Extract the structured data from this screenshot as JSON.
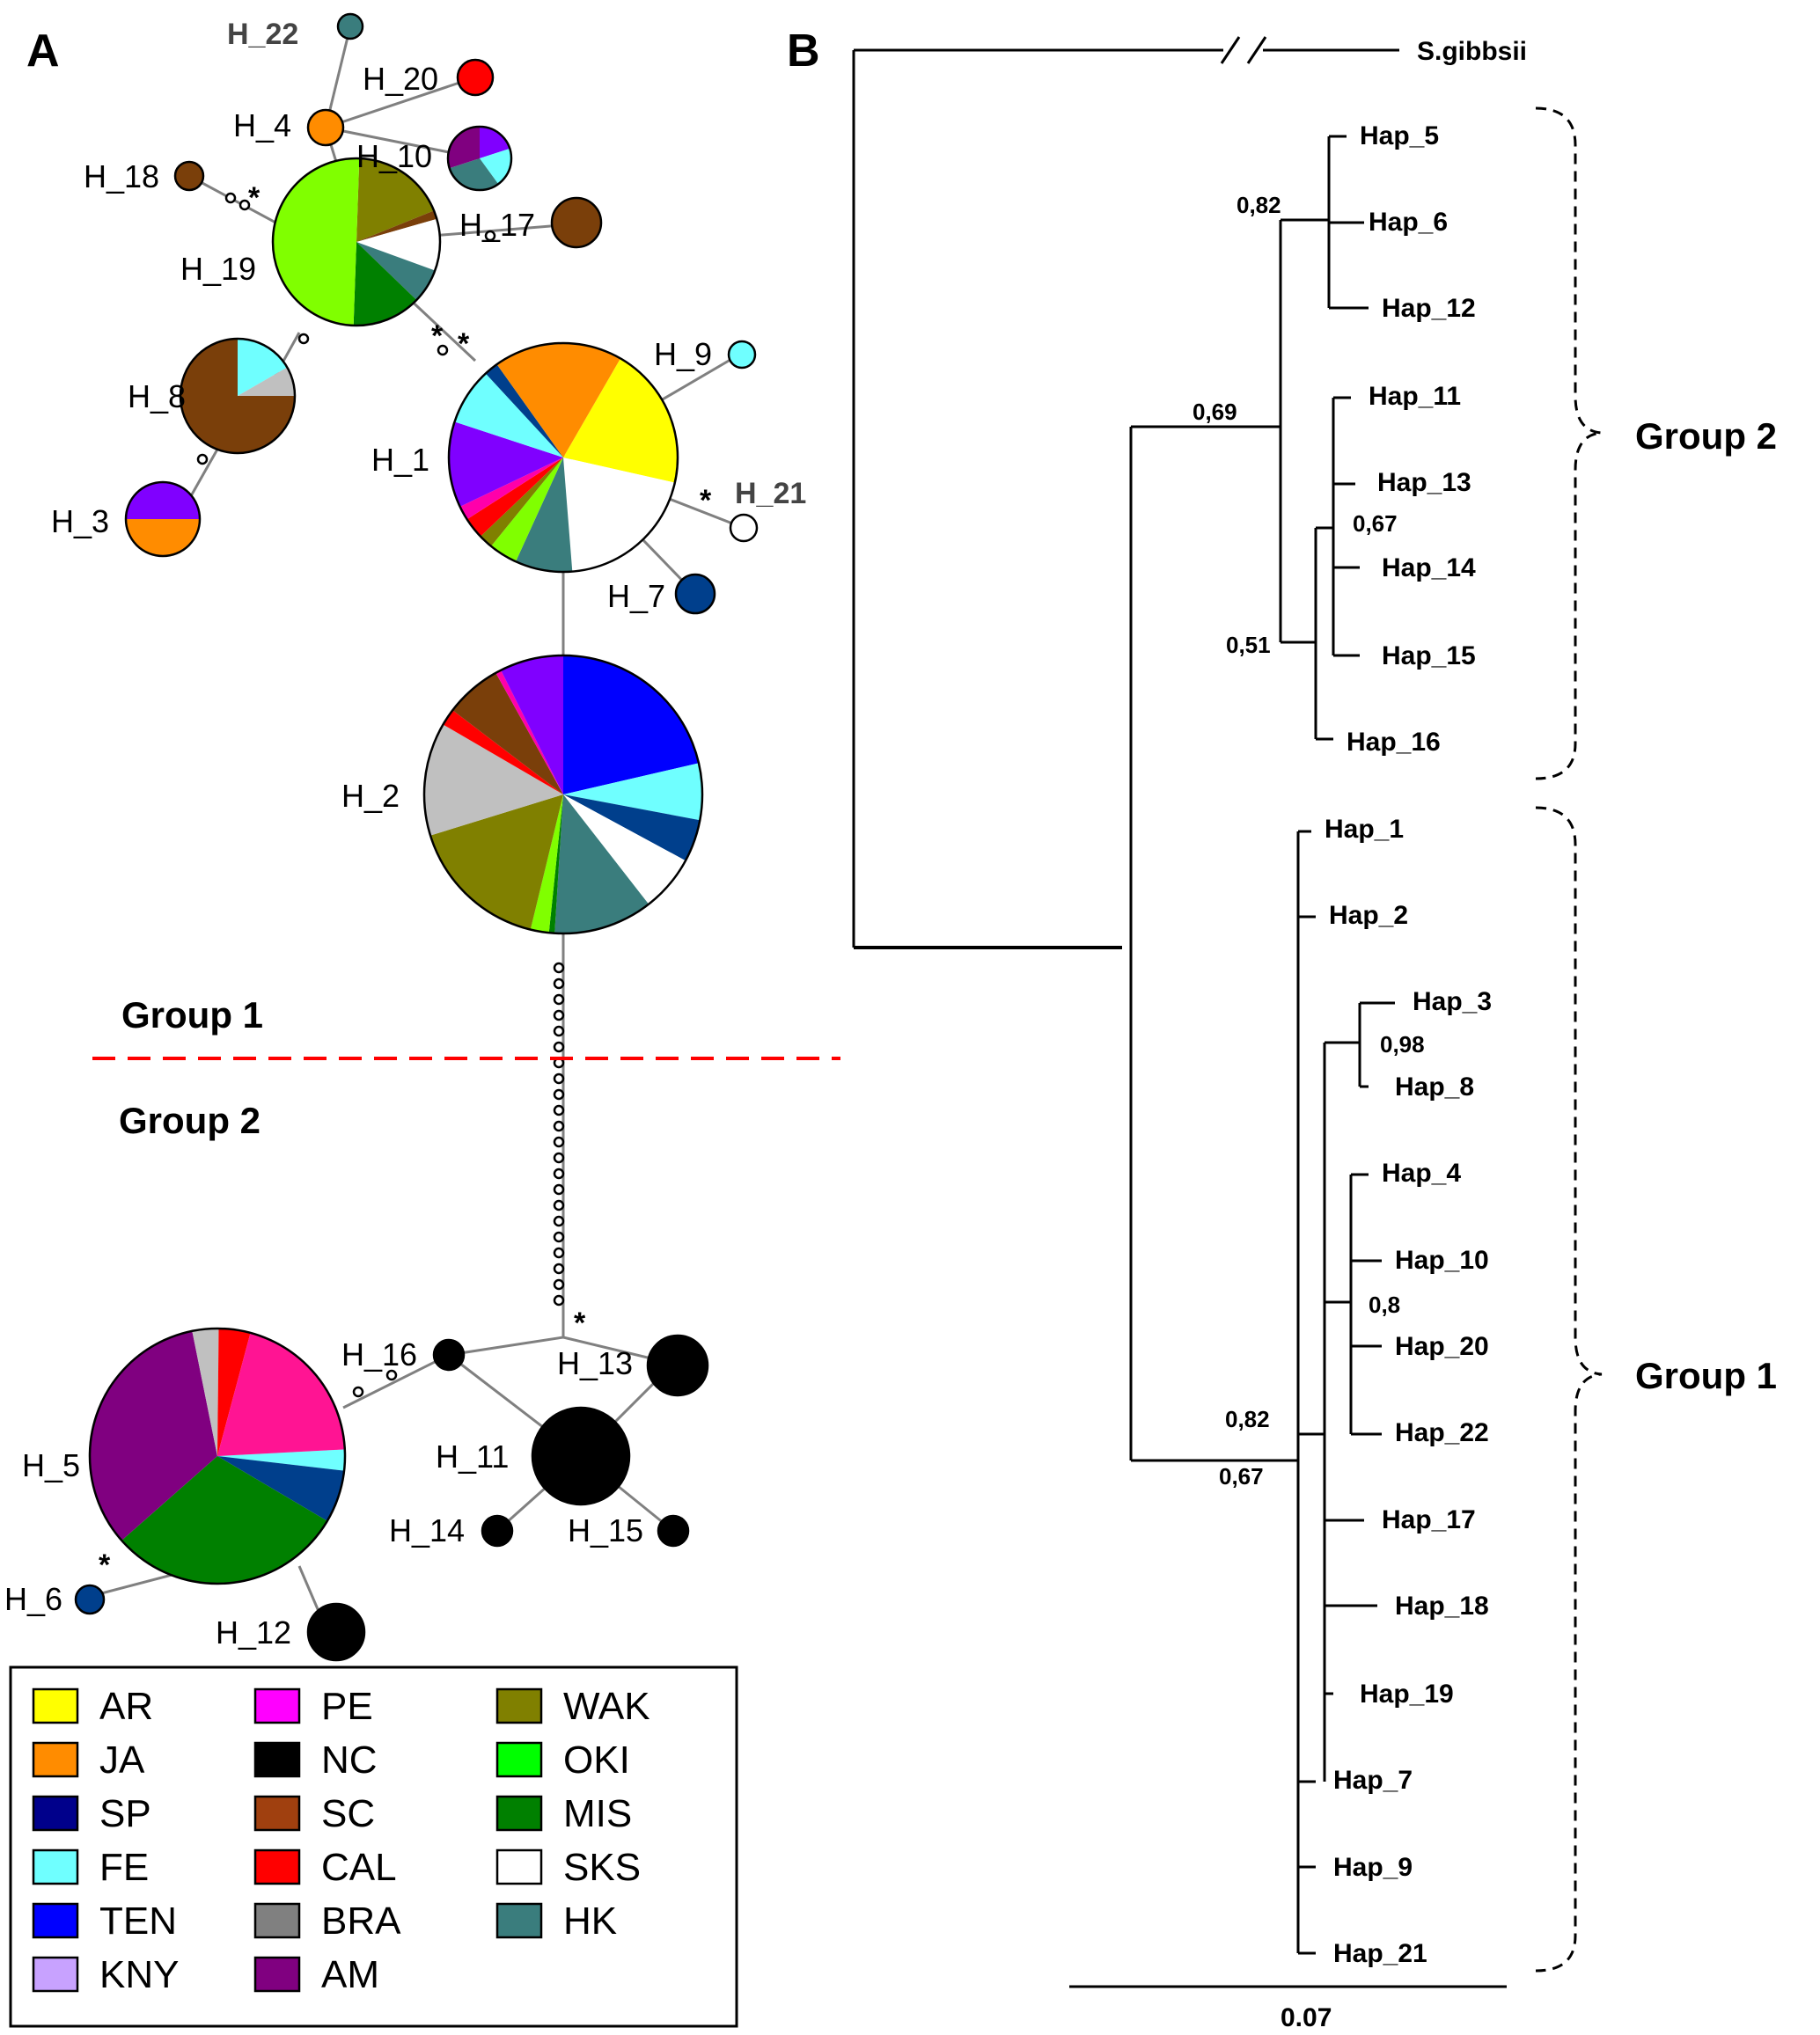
{
  "panels": {
    "a": "A",
    "b": "B"
  },
  "network": {
    "group1_label": "Group 1",
    "group2_label": "Group 2",
    "haplotypes": [
      {
        "id": "H_22",
        "label": "H_22",
        "slices": [
          {
            "c": "#3a7d7d",
            "v": 1
          }
        ]
      },
      {
        "id": "H_20",
        "label": "H_20",
        "slices": [
          {
            "c": "#ff0000",
            "v": 1
          }
        ]
      },
      {
        "id": "H_4",
        "label": "H_4",
        "slices": [
          {
            "c": "#ff8c00",
            "v": 1
          }
        ]
      },
      {
        "id": "H_10",
        "label": "H_10",
        "slices": [
          {
            "c": "#8000ff",
            "v": 1
          },
          {
            "c": "#6fffff",
            "v": 1
          },
          {
            "c": "#3a7d7d",
            "v": 1.5
          },
          {
            "c": "#800080",
            "v": 1.5
          }
        ]
      },
      {
        "id": "H_18",
        "label": "H_18",
        "slices": [
          {
            "c": "#7a3f0a",
            "v": 1
          }
        ]
      },
      {
        "id": "H_17",
        "label": "H_17",
        "slices": [
          {
            "c": "#7a3f0a",
            "v": 1
          }
        ]
      },
      {
        "id": "H_19",
        "label": "H_19",
        "slices": [
          {
            "c": "#808000",
            "v": 2.2
          },
          {
            "c": "#7a3f0a",
            "v": 0.2
          },
          {
            "c": "#ffffff",
            "v": 1.2
          },
          {
            "c": "#3a7d7d",
            "v": 0.8
          },
          {
            "c": "#008000",
            "v": 1.6
          },
          {
            "c": "#80ff00",
            "v": 6
          }
        ]
      },
      {
        "id": "H_8",
        "label": "H_8",
        "slices": [
          {
            "c": "#6fffff",
            "v": 2
          },
          {
            "c": "#c0c0c0",
            "v": 1
          },
          {
            "c": "#7a3f0a",
            "v": 9
          }
        ]
      },
      {
        "id": "H_3",
        "label": "H_3",
        "slices": [
          {
            "c": "#ff8c00",
            "v": 1
          },
          {
            "c": "#8000ff",
            "v": 1
          }
        ]
      },
      {
        "id": "H_9",
        "label": "H_9",
        "slices": [
          {
            "c": "#6fffff",
            "v": 1
          }
        ]
      },
      {
        "id": "H_1",
        "label": "H_1",
        "slices": [
          {
            "c": "#ffff00",
            "v": 10
          },
          {
            "c": "#ffffff",
            "v": 10
          },
          {
            "c": "#3a7d7d",
            "v": 4
          },
          {
            "c": "#80ff00",
            "v": 2
          },
          {
            "c": "#808000",
            "v": 1
          },
          {
            "c": "#ff0000",
            "v": 1.5
          },
          {
            "c": "#ff00aa",
            "v": 1
          },
          {
            "c": "#8000ff",
            "v": 6
          },
          {
            "c": "#6fffff",
            "v": 4
          },
          {
            "c": "#003f8c",
            "v": 1
          },
          {
            "c": "#ff8c00",
            "v": 9
          }
        ]
      },
      {
        "id": "H_21",
        "label": "H_21",
        "slices": [
          {
            "c": "#ffffff",
            "v": 1
          }
        ]
      },
      {
        "id": "H_7",
        "label": "H_7",
        "slices": [
          {
            "c": "#003f8c",
            "v": 1
          }
        ]
      },
      {
        "id": "H_2",
        "label": "H_2",
        "slices": [
          {
            "c": "#0000ff",
            "v": 13
          },
          {
            "c": "#6fffff",
            "v": 4
          },
          {
            "c": "#003f8c",
            "v": 3
          },
          {
            "c": "#ffffff",
            "v": 4
          },
          {
            "c": "#3a7d7d",
            "v": 7
          },
          {
            "c": "#008000",
            "v": 0.4
          },
          {
            "c": "#80ff00",
            "v": 1.3
          },
          {
            "c": "#808000",
            "v": 10
          },
          {
            "c": "#c0c0c0",
            "v": 8
          },
          {
            "c": "#ff0000",
            "v": 1.2
          },
          {
            "c": "#7a3f0a",
            "v": 4
          },
          {
            "c": "#ff00aa",
            "v": 0.4
          },
          {
            "c": "#8000ff",
            "v": 4.5
          }
        ]
      },
      {
        "id": "H_16",
        "label": "H_16",
        "slices": [
          {
            "c": "#000000",
            "v": 1
          }
        ]
      },
      {
        "id": "H_13",
        "label": "H_13",
        "slices": [
          {
            "c": "#000000",
            "v": 1
          }
        ]
      },
      {
        "id": "H_11",
        "label": "H_11",
        "slices": [
          {
            "c": "#000000",
            "v": 1
          }
        ]
      },
      {
        "id": "H_14",
        "label": "H_14",
        "slices": [
          {
            "c": "#000000",
            "v": 1
          }
        ]
      },
      {
        "id": "H_15",
        "label": "H_15",
        "slices": [
          {
            "c": "#000000",
            "v": 1
          }
        ]
      },
      {
        "id": "H_5",
        "label": "H_5",
        "slices": [
          {
            "c": "#6fffff",
            "v": 0.8
          },
          {
            "c": "#003f8c",
            "v": 2
          },
          {
            "c": "#008000",
            "v": 9
          },
          {
            "c": "#800080",
            "v": 10
          },
          {
            "c": "#c0c0c0",
            "v": 1
          },
          {
            "c": "#ff0000",
            "v": 1.2
          },
          {
            "c": "#ff1493",
            "v": 6
          }
        ]
      },
      {
        "id": "H_6",
        "label": "H_6",
        "slices": [
          {
            "c": "#003f8c",
            "v": 1
          }
        ]
      },
      {
        "id": "H_12",
        "label": "H_12",
        "slices": [
          {
            "c": "#000000",
            "v": 1
          }
        ]
      }
    ],
    "mutation_mark": "*"
  },
  "legend": [
    {
      "label": "AR",
      "color": "#ffff00"
    },
    {
      "label": "JA",
      "color": "#ff8c00"
    },
    {
      "label": "SP",
      "color": "#00008b"
    },
    {
      "label": "FE",
      "color": "#6fffff"
    },
    {
      "label": "TEN",
      "color": "#0000ff"
    },
    {
      "label": "KNY",
      "color": "#c8a2ff"
    },
    {
      "label": "PE",
      "color": "#ff00ff"
    },
    {
      "label": "NC",
      "color": "#000000"
    },
    {
      "label": "SC",
      "color": "#a0400f"
    },
    {
      "label": "CAL",
      "color": "#ff0000"
    },
    {
      "label": "BRA",
      "color": "#808080"
    },
    {
      "label": "AM",
      "color": "#800080"
    },
    {
      "label": "WAK",
      "color": "#808000"
    },
    {
      "label": "OKI",
      "color": "#00ff00"
    },
    {
      "label": "MIS",
      "color": "#008000"
    },
    {
      "label": "SKS",
      "color": "#ffffff"
    },
    {
      "label": "HK",
      "color": "#3a7d7d"
    }
  ],
  "tree": {
    "outgroup": "S.gibbsii",
    "tips": [
      "Hap_5",
      "Hap_6",
      "Hap_12",
      "Hap_11",
      "Hap_13",
      "Hap_14",
      "Hap_15",
      "Hap_16",
      "Hap_1",
      "Hap_2",
      "Hap_3",
      "Hap_8",
      "Hap_4",
      "Hap_10",
      "Hap_20",
      "Hap_22",
      "Hap_17",
      "Hap_18",
      "Hap_19",
      "Hap_7",
      "Hap_9",
      "Hap_21"
    ],
    "support": [
      "0,82",
      "0,69",
      "0,67",
      "0,51",
      "0,98",
      "0,8",
      "0,82",
      "0,67"
    ],
    "group2_label": "Group 2",
    "group1_label": "Group 1",
    "scale_label": "0.07"
  }
}
